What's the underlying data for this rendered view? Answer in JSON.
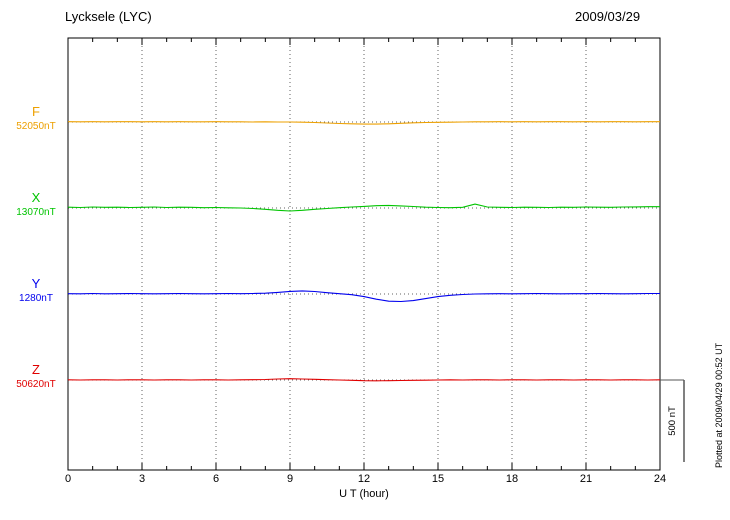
{
  "header": {
    "station_title": "Lycksele (LYC)",
    "date": "2009/03/29"
  },
  "plotted_note": "Plotted at 2009/04/29 00:52 UT",
  "chart_data": {
    "type": "line",
    "title": "Lycksele (LYC)",
    "date": "2009/03/29",
    "xlabel": "U T (hour)",
    "x_range": [
      0,
      24
    ],
    "x_major_ticks": [
      0,
      3,
      6,
      9,
      12,
      15,
      18,
      21,
      24
    ],
    "x_minor_step": 1,
    "grid": "dotted vertical lines at 3-hour marks; dotted horizontal baseline per trace",
    "legend_position": "left margin, one colored label per trace",
    "scale_bar": {
      "label": "500 nT",
      "value_nT": 500
    },
    "x_step_hours": 0.5,
    "series": [
      {
        "name": "F",
        "baseline_label": "52050nT",
        "baseline_nT": 52050,
        "color": "#eda000",
        "deviation_nT": [
          2,
          1,
          2,
          1,
          2,
          2,
          1,
          2,
          1,
          2,
          1,
          1,
          2,
          1,
          1,
          0,
          1,
          0,
          0,
          -1,
          -3,
          -6,
          -9,
          -11,
          -13,
          -13,
          -11,
          -8,
          -5,
          -3,
          -2,
          -1,
          0,
          1,
          1,
          2,
          1,
          2,
          1,
          2,
          2,
          1,
          2,
          1,
          2,
          2,
          1,
          2,
          2
        ]
      },
      {
        "name": "X",
        "baseline_label": "13070nT",
        "baseline_nT": 13070,
        "color": "#00c400",
        "deviation_nT": [
          5,
          3,
          6,
          4,
          5,
          3,
          4,
          6,
          3,
          5,
          4,
          2,
          3,
          1,
          0,
          -3,
          -8,
          -14,
          -18,
          -14,
          -8,
          -3,
          2,
          6,
          10,
          14,
          16,
          13,
          9,
          5,
          3,
          2,
          4,
          24,
          6,
          4,
          3,
          5,
          4,
          3,
          5,
          4,
          6,
          5,
          4,
          6,
          7,
          8,
          8
        ]
      },
      {
        "name": "Y",
        "baseline_label": "1280nT",
        "baseline_nT": 1280,
        "color": "#0000ee",
        "deviation_nT": [
          2,
          1,
          3,
          1,
          2,
          3,
          2,
          1,
          2,
          3,
          2,
          1,
          2,
          3,
          2,
          3,
          5,
          10,
          16,
          19,
          15,
          8,
          2,
          -4,
          -16,
          -32,
          -44,
          -46,
          -40,
          -28,
          -16,
          -8,
          -3,
          0,
          1,
          2,
          1,
          2,
          3,
          2,
          1,
          2,
          2,
          3,
          2,
          1,
          2,
          3,
          3
        ]
      },
      {
        "name": "Z",
        "baseline_label": "50620nT",
        "baseline_nT": 50620,
        "color": "#e00000",
        "deviation_nT": [
          1,
          0,
          1,
          1,
          0,
          1,
          1,
          0,
          1,
          1,
          0,
          1,
          1,
          0,
          1,
          2,
          3,
          6,
          8,
          6,
          4,
          2,
          0,
          -2,
          -4,
          -5,
          -4,
          -3,
          -2,
          -1,
          0,
          1,
          0,
          1,
          1,
          0,
          1,
          1,
          0,
          1,
          1,
          0,
          1,
          1,
          0,
          1,
          1,
          0,
          1
        ]
      }
    ]
  }
}
